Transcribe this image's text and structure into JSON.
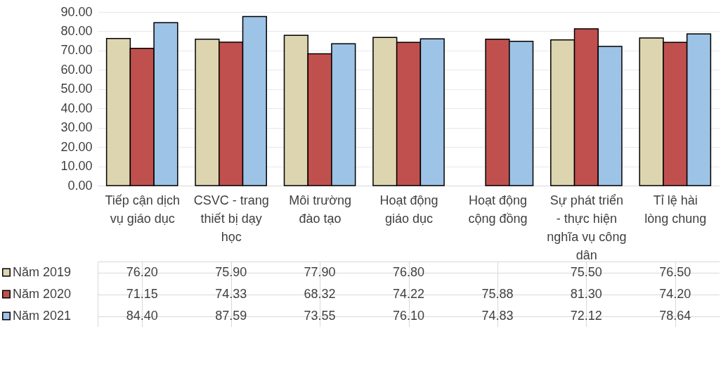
{
  "chart_data": {
    "type": "bar",
    "categories": [
      "Tiếp cận dịch vụ giáo dục",
      "CSVC - trang thiết bị dạy học",
      "Môi trường đào tạo",
      "Hoạt động giáo dục",
      "Hoạt động cộng đồng",
      "Sự phát triển - thực hiện nghĩa vụ công dân",
      "Tỉ lệ hài lòng chung"
    ],
    "series": [
      {
        "name": "Năm 2019",
        "color": "#ddd5b0",
        "values": [
          76.2,
          75.9,
          77.9,
          76.8,
          null,
          75.5,
          76.5
        ],
        "value_labels": [
          "76.20",
          "75.90",
          "77.90",
          "76.80",
          null,
          "75.50",
          "76.50"
        ]
      },
      {
        "name": "Năm 2020",
        "color": "#c0504d",
        "values": [
          71.15,
          74.33,
          68.32,
          74.22,
          75.88,
          81.3,
          74.2
        ],
        "value_labels": [
          "71.15",
          "74.33",
          "68.32",
          "74.22",
          "75.88",
          "81.30",
          "74.20"
        ]
      },
      {
        "name": "Năm 2021",
        "color": "#9dc3e6",
        "values": [
          84.4,
          87.59,
          73.55,
          76.1,
          74.83,
          72.12,
          78.64
        ],
        "value_labels": [
          "84.40",
          "87.59",
          "73.55",
          "76.10",
          "74.83",
          "72.12",
          "78.64"
        ]
      }
    ],
    "ylim": [
      0,
      90
    ],
    "yticks": [
      {
        "value": 0,
        "label": "0.00"
      },
      {
        "value": 10,
        "label": "10.00"
      },
      {
        "value": 20,
        "label": "20.00"
      },
      {
        "value": 30,
        "label": "30.00"
      },
      {
        "value": 40,
        "label": "40.00"
      },
      {
        "value": 50,
        "label": "50.00"
      },
      {
        "value": 60,
        "label": "60.00"
      },
      {
        "value": 70,
        "label": "70.00"
      },
      {
        "value": 80,
        "label": "80.00"
      },
      {
        "value": 90,
        "label": "90.00"
      }
    ],
    "grid": "y",
    "legend": "bottom left"
  }
}
